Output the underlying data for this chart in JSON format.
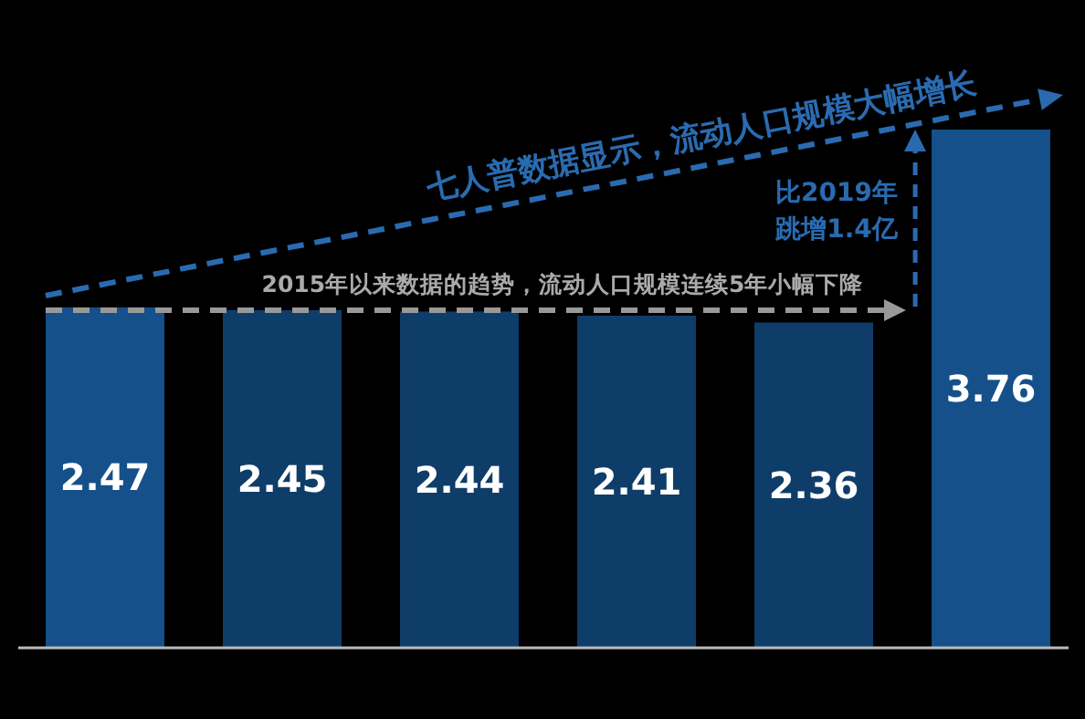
{
  "chart_data": {
    "type": "bar",
    "categories": [
      null,
      null,
      null,
      null,
      null,
      null
    ],
    "values": [
      2.47,
      2.45,
      2.44,
      2.41,
      2.36,
      3.76
    ],
    "colors": [
      "#15508a",
      "#0f3d69",
      "#0f3d69",
      "#0f3d69",
      "#0f3d69",
      "#15508a"
    ],
    "data_labels": true,
    "annotations": [
      "七人普数据显示，流动人口规模大幅增长",
      "比2019年",
      "跳增1.4亿",
      "2015年以来数据的趋势，流动人口规模连续5年小幅下降"
    ]
  }
}
